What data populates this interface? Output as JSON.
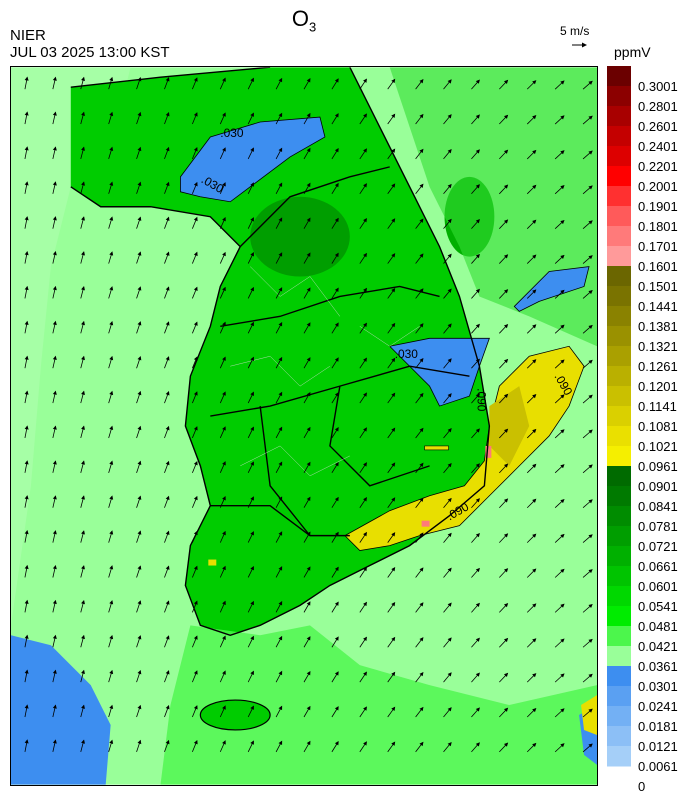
{
  "header": {
    "title": "O",
    "title_sub": "3",
    "org": "NIER",
    "datetime": "JUL 03 2025 13:00 KST",
    "vector_legend": "5 m/s",
    "unit": "ppmV"
  },
  "contour_labels": [
    ".030",
    ".030",
    ".030",
    ".090",
    ".090",
    ".090"
  ],
  "colorbar": {
    "ticks": [
      "0.3001",
      "0.2801",
      "0.2601",
      "0.2401",
      "0.2201",
      "0.2001",
      "0.1901",
      "0.1801",
      "0.1701",
      "0.1601",
      "0.1501",
      "0.1441",
      "0.1381",
      "0.1321",
      "0.1261",
      "0.1201",
      "0.1141",
      "0.1081",
      "0.1021",
      "0.0961",
      "0.0901",
      "0.0841",
      "0.0781",
      "0.0721",
      "0.0661",
      "0.0601",
      "0.0541",
      "0.0481",
      "0.0421",
      "0.0361",
      "0.0301",
      "0.0241",
      "0.0181",
      "0.0121",
      "0.0061",
      "0"
    ],
    "colors": [
      "#6b0000",
      "#8c0000",
      "#a80000",
      "#c40000",
      "#dd0000",
      "#ff0000",
      "#ff3030",
      "#ff5a5a",
      "#ff7a7a",
      "#ff9a9a",
      "#6b6600",
      "#7a7300",
      "#8a8200",
      "#9a9100",
      "#aaa000",
      "#bab000",
      "#cac000",
      "#dad000",
      "#eae000",
      "#f5ef00",
      "#006b00",
      "#007a00",
      "#008c00",
      "#009e00",
      "#00b000",
      "#00c400",
      "#00d800",
      "#00ec00",
      "#4cf64c",
      "#99ff99",
      "#3d8ef0",
      "#5aa0f2",
      "#73b0f4",
      "#8cbff6",
      "#a5cff8"
    ],
    "colors_note": "green/yellow/red/blue O3 scale"
  },
  "colors": {
    "background": "#ffffff",
    "land_base": "#00cc00",
    "sea_base": "#99ff99",
    "high_band": "#e8df00",
    "blue_band": "#3d8ef0"
  }
}
